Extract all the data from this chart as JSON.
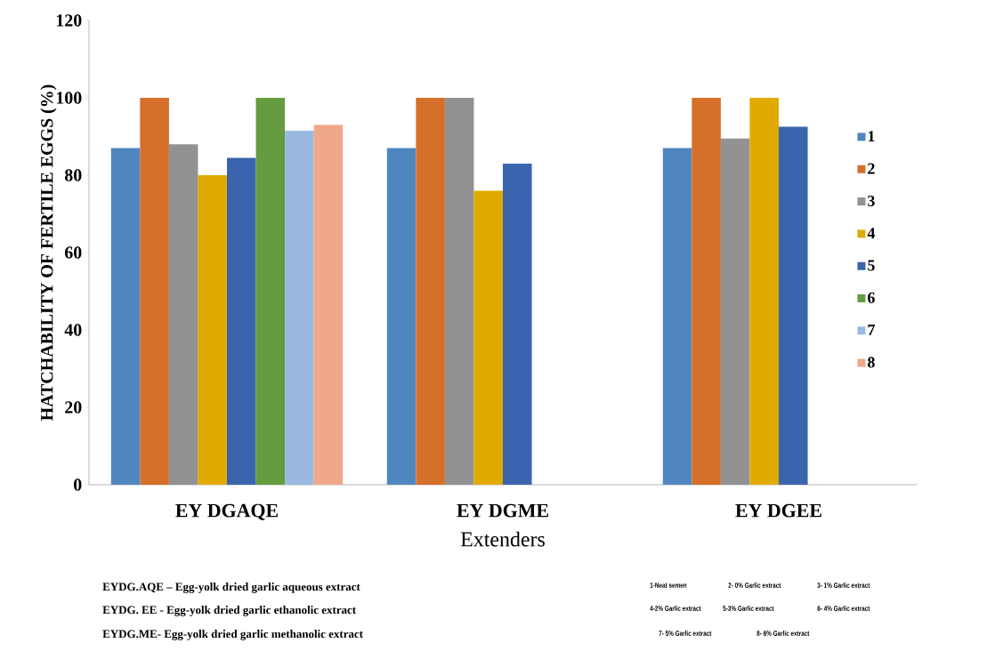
{
  "chart_data": {
    "type": "bar",
    "ylabel": "HATCHABILITY OF FERTILE EGGS (%)",
    "xlabel": "Extenders",
    "categories": [
      "EY DGAQE",
      "EY DGME",
      "EY DGEE"
    ],
    "series": [
      {
        "name": "1",
        "color": "#4f86c0",
        "values": [
          87,
          87,
          87
        ]
      },
      {
        "name": "2",
        "color": "#d56f2a",
        "values": [
          100,
          100,
          100
        ]
      },
      {
        "name": "3",
        "color": "#929292",
        "values": [
          88,
          100,
          89.5
        ]
      },
      {
        "name": "4",
        "color": "#e0aa00",
        "values": [
          80,
          76,
          100
        ]
      },
      {
        "name": "5",
        "color": "#3b64ae",
        "values": [
          84.5,
          83,
          92.5
        ]
      },
      {
        "name": "6",
        "color": "#659c3f",
        "values": [
          100,
          null,
          null
        ]
      },
      {
        "name": "7",
        "color": "#9ab9e0",
        "values": [
          91.5,
          null,
          null
        ]
      },
      {
        "name": "8",
        "color": "#f0a888",
        "values": [
          93,
          null,
          null
        ]
      }
    ],
    "ylim": [
      0,
      120
    ],
    "yticks": [
      0,
      20,
      40,
      60,
      80,
      100,
      120
    ],
    "grid": false,
    "legend": "right",
    "annotations": [
      "EYDG.AQE – Egg-yolk dried garlic aqueous extract",
      "EYDG. EE - Egg-yolk dried garlic ethanolic extract",
      "EYDG.ME- Egg-yolk dried garlic methanolic extract",
      "1-Neat semen",
      "2- 0% Garlic extract",
      "3- 1% Garlic extract",
      "4-2% Garlic extract",
      "5-3% Garlic extract",
      "6- 4% Garlic extract",
      "7- 5% Garlic extract",
      "8- 6% Garlic extract"
    ]
  }
}
